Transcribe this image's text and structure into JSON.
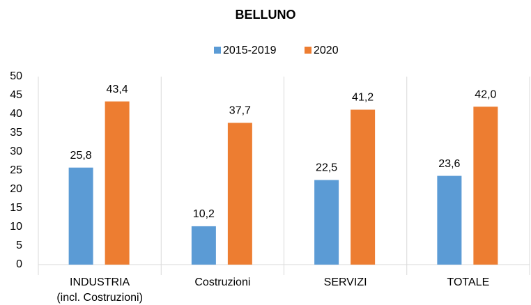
{
  "chart_data": {
    "type": "bar",
    "title": "BELLUNO",
    "categories": [
      "INDUSTRIA\n(incl. Costruzioni)",
      "Costruzioni",
      "SERVIZI",
      "TOTALE"
    ],
    "series": [
      {
        "name": "2015-2019",
        "color": "#5b9bd5",
        "values": [
          25.8,
          10.2,
          22.5,
          23.6
        ],
        "value_labels": [
          "25,8",
          "10,2",
          "22,5",
          "23,6"
        ]
      },
      {
        "name": "2020",
        "color": "#ed7d31",
        "values": [
          43.4,
          37.7,
          41.2,
          42.0
        ],
        "value_labels": [
          "43,4",
          "37,7",
          "41,2",
          "42,0"
        ]
      }
    ],
    "ylim": [
      0,
      50
    ],
    "yticks": [
      0,
      5,
      10,
      15,
      20,
      25,
      30,
      35,
      40,
      45,
      50
    ],
    "grid": false,
    "legend": "top"
  }
}
